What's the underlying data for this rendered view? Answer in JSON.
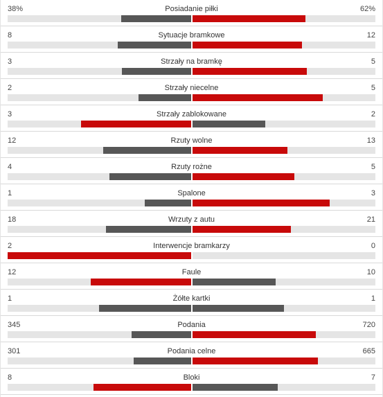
{
  "colors": {
    "leader": "#c80a0a",
    "trailer": "#575757",
    "track": "#e5e5e5"
  },
  "stats": [
    {
      "label": "Posiadanie piłki",
      "home": "38%",
      "away": "62%",
      "home_share": 0.38,
      "away_share": 0.62
    },
    {
      "label": "Sytuacje bramkowe",
      "home": "8",
      "away": "12",
      "home_share": 0.4,
      "away_share": 0.6
    },
    {
      "label": "Strzały na bramkę",
      "home": "3",
      "away": "5",
      "home_share": 0.375,
      "away_share": 0.625
    },
    {
      "label": "Strzały niecelne",
      "home": "2",
      "away": "5",
      "home_share": 0.286,
      "away_share": 0.714
    },
    {
      "label": "Strzały zablokowane",
      "home": "3",
      "away": "2",
      "home_share": 0.6,
      "away_share": 0.4
    },
    {
      "label": "Rzuty wolne",
      "home": "12",
      "away": "13",
      "home_share": 0.48,
      "away_share": 0.52
    },
    {
      "label": "Rzuty rożne",
      "home": "4",
      "away": "5",
      "home_share": 0.444,
      "away_share": 0.556
    },
    {
      "label": "Spalone",
      "home": "1",
      "away": "3",
      "home_share": 0.25,
      "away_share": 0.75
    },
    {
      "label": "Wrzuty z autu",
      "home": "18",
      "away": "21",
      "home_share": 0.462,
      "away_share": 0.538
    },
    {
      "label": "Interwencje bramkarzy",
      "home": "2",
      "away": "0",
      "home_share": 1.0,
      "away_share": 0.0
    },
    {
      "label": "Faule",
      "home": "12",
      "away": "10",
      "home_share": 0.545,
      "away_share": 0.455
    },
    {
      "label": "Żółte kartki",
      "home": "1",
      "away": "1",
      "home_share": 0.5,
      "away_share": 0.5
    },
    {
      "label": "Podania",
      "home": "345",
      "away": "720",
      "home_share": 0.324,
      "away_share": 0.676
    },
    {
      "label": "Podania celne",
      "home": "301",
      "away": "665",
      "home_share": 0.312,
      "away_share": 0.688
    },
    {
      "label": "Bloki",
      "home": "8",
      "away": "7",
      "home_share": 0.533,
      "away_share": 0.467
    }
  ]
}
